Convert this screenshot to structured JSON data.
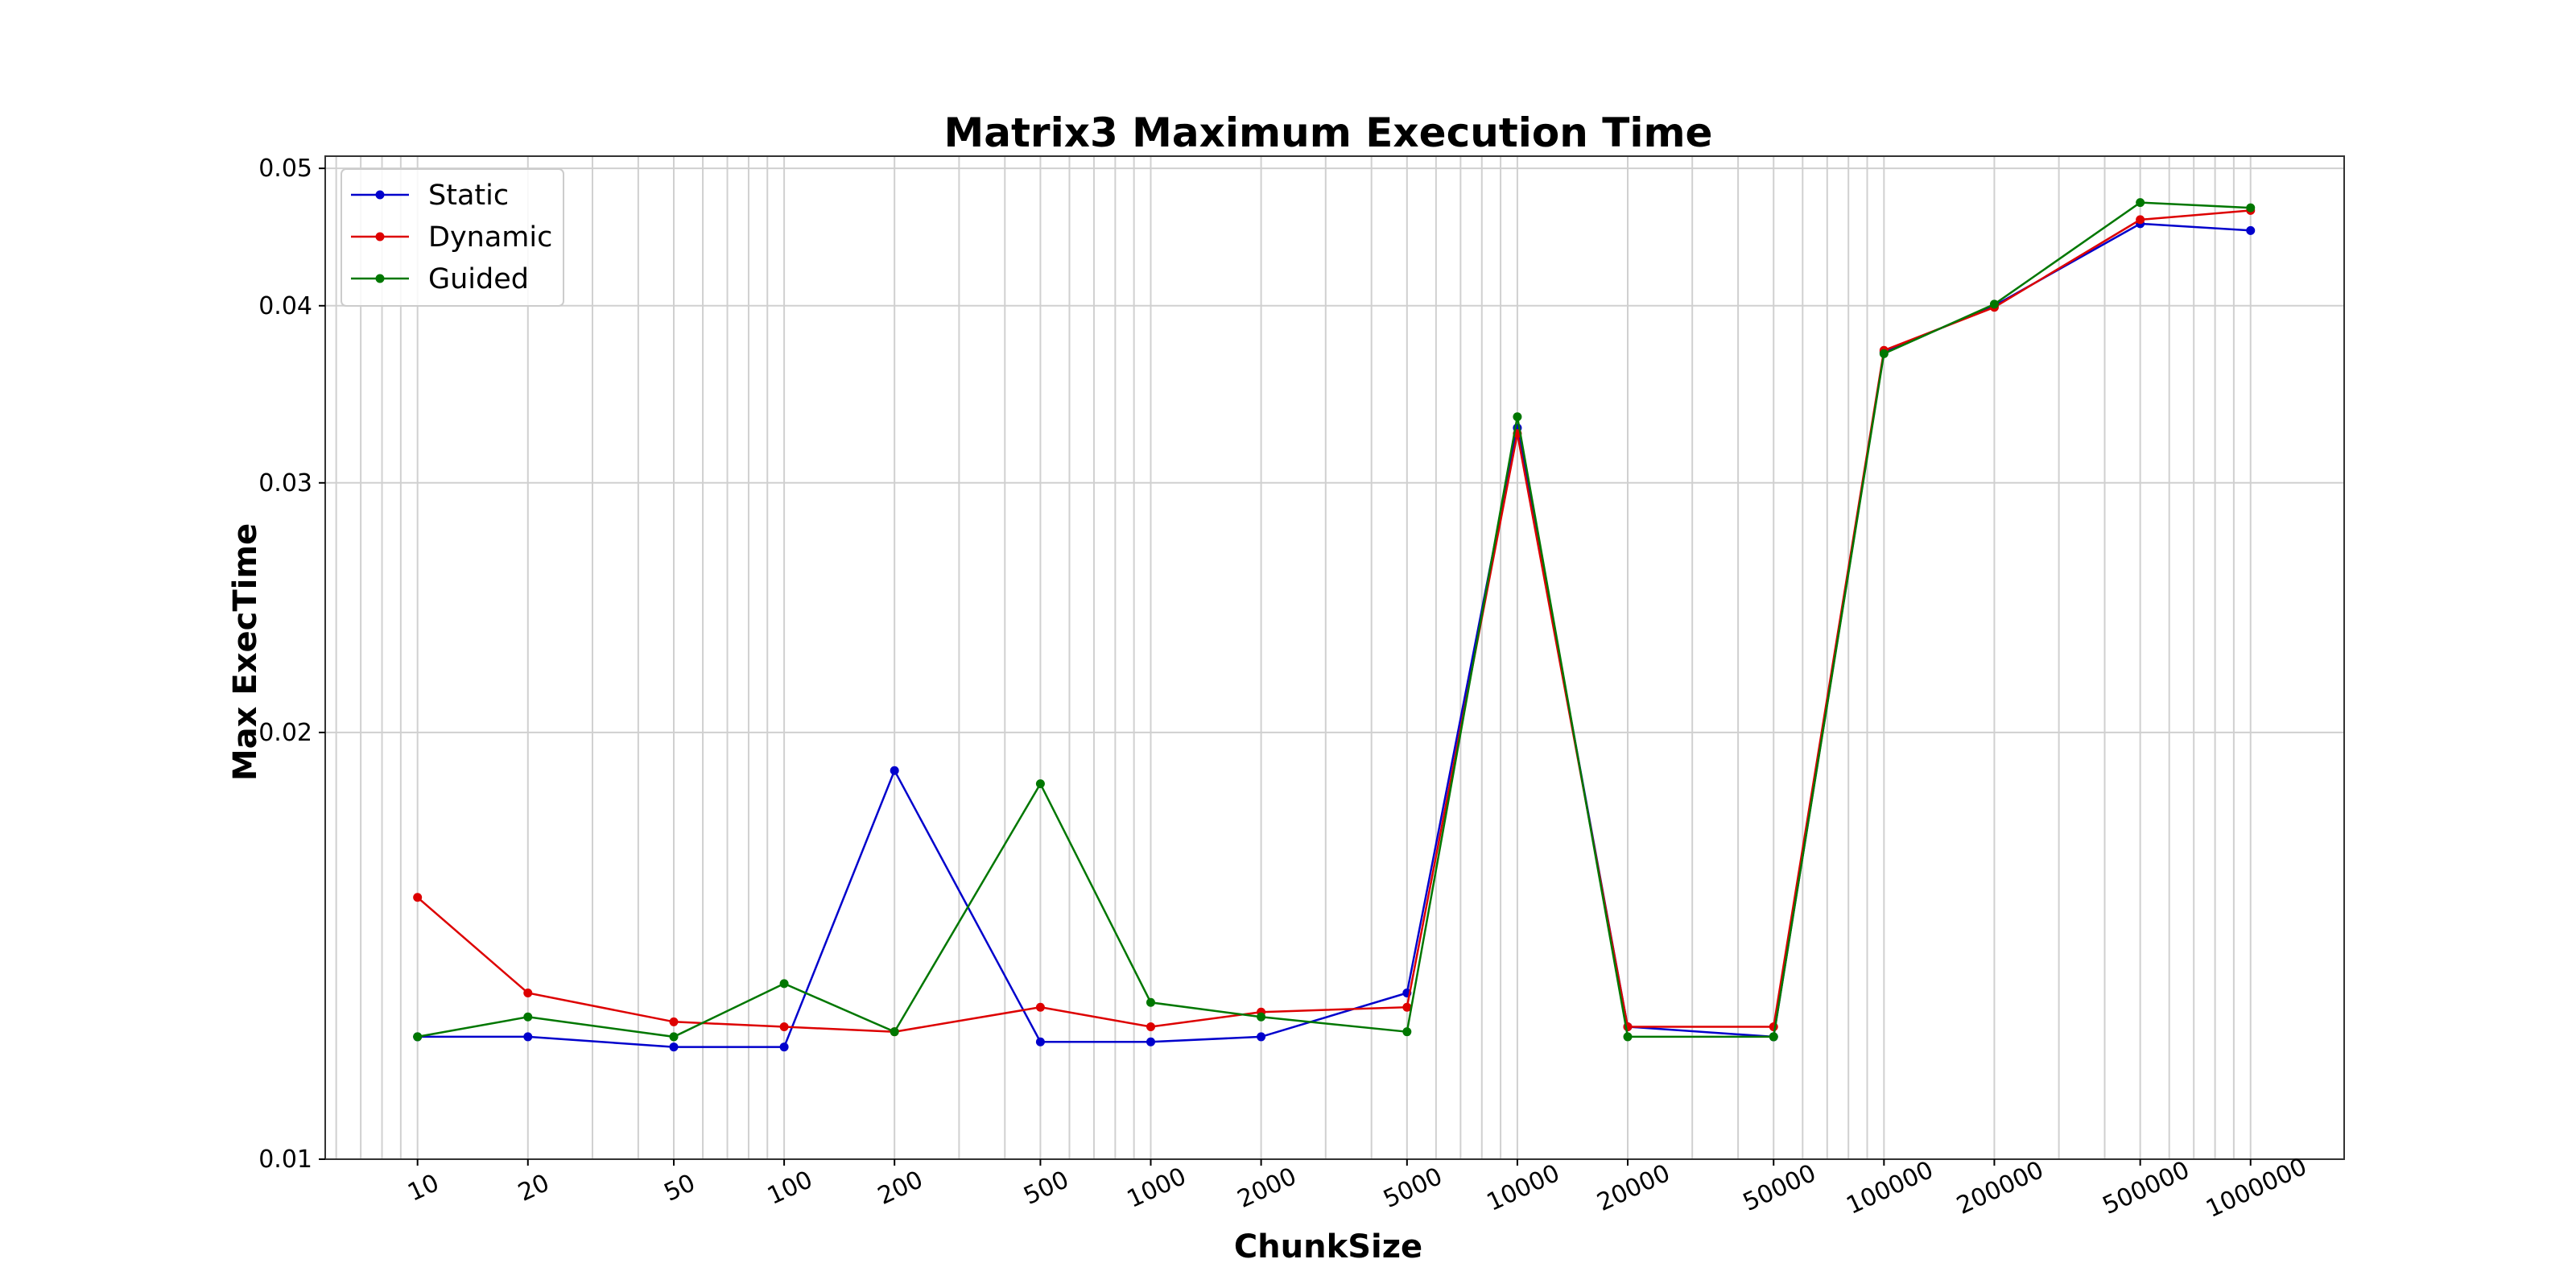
{
  "chart_data": {
    "type": "line",
    "title": "Matrix3 Maximum Execution Time",
    "xlabel": "ChunkSize",
    "ylabel": "Max ExecTime",
    "xscale": "log",
    "yscale": "log",
    "xlim": [
      5.6,
      1800000
    ],
    "ylim": [
      0.01,
      0.051
    ],
    "grid": true,
    "legend_position": "top-left",
    "x": [
      10,
      20,
      50,
      100,
      200,
      500,
      1000,
      2000,
      5000,
      10000,
      20000,
      50000,
      100000,
      200000,
      500000,
      1000000
    ],
    "x_tick_labels": [
      "10",
      "20",
      "50",
      "100",
      "200",
      "500",
      "1000",
      "2000",
      "5000",
      "10000",
      "20000",
      "50000",
      "100000",
      "200000",
      "500000",
      "1000000"
    ],
    "y_ticks": [
      0.01,
      0.02,
      0.03,
      0.04,
      0.05
    ],
    "y_tick_labels": [
      "0.01",
      "0.02",
      "0.03",
      "0.04",
      "0.05"
    ],
    "series": [
      {
        "name": "Static",
        "color": "#0000cc",
        "values": [
          0.0122,
          0.0122,
          0.012,
          0.012,
          0.0188,
          0.0121,
          0.0121,
          0.0122,
          0.0131,
          0.0328,
          0.0124,
          0.0122,
          0.0371,
          0.04,
          0.0457,
          0.0452
        ]
      },
      {
        "name": "Dynamic",
        "color": "#dd0000",
        "values": [
          0.0153,
          0.0131,
          0.0125,
          0.0124,
          0.0123,
          0.0128,
          0.0124,
          0.0127,
          0.0128,
          0.0325,
          0.0124,
          0.0124,
          0.0372,
          0.0399,
          0.046,
          0.0467
        ]
      },
      {
        "name": "Guided",
        "color": "#007700",
        "values": [
          0.0122,
          0.0126,
          0.0122,
          0.0133,
          0.0123,
          0.0184,
          0.0129,
          0.0126,
          0.0123,
          0.0334,
          0.0122,
          0.0122,
          0.037,
          0.0401,
          0.0473,
          0.0469
        ]
      }
    ]
  }
}
